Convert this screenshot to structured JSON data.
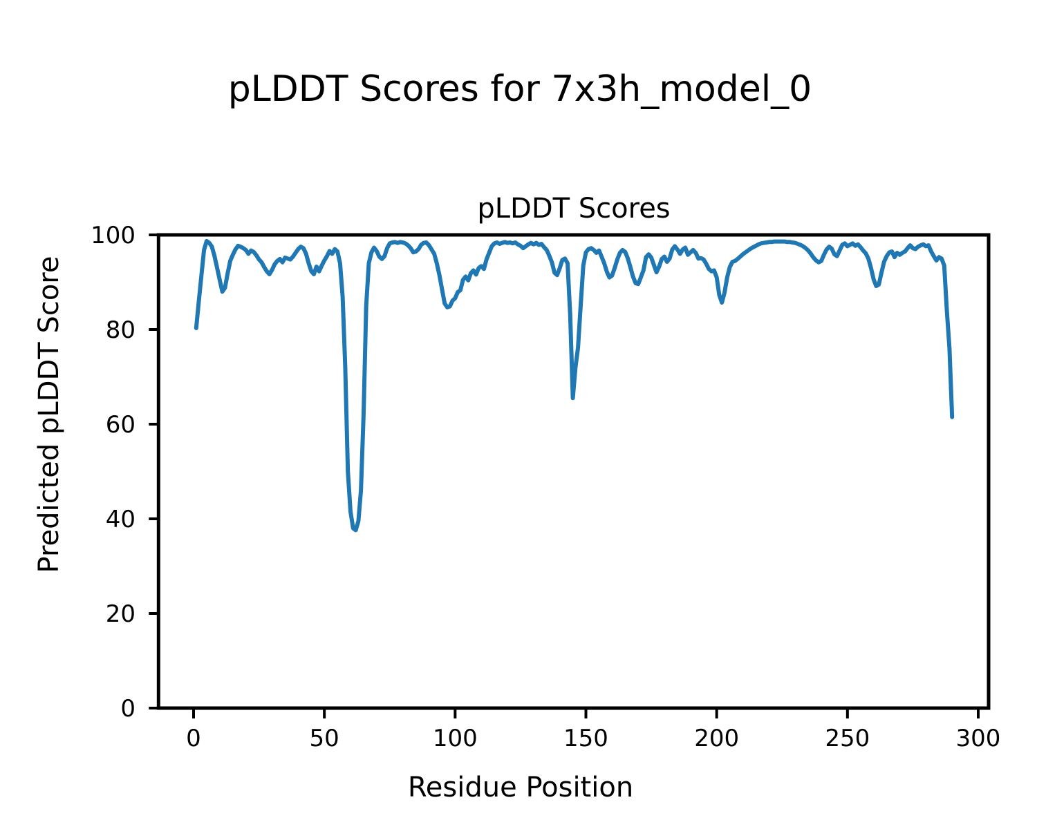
{
  "figure": {
    "suptitle": "pLDDT Scores for 7x3h_model_0",
    "background_color": "#ffffff",
    "text_color": "#000000"
  },
  "chart_data": {
    "type": "line",
    "title": "pLDDT Scores",
    "xlabel": "Residue Position",
    "ylabel": "Predicted pLDDT Score",
    "xlim": [
      -13.4,
      304
    ],
    "ylim": [
      0,
      100
    ],
    "xticks": [
      0,
      50,
      100,
      150,
      200,
      250,
      300
    ],
    "yticks": [
      0,
      20,
      40,
      60,
      80,
      100
    ],
    "grid": false,
    "line_color": "#1f77b4",
    "axis_color": "#000000",
    "series": [
      {
        "name": "pLDDT",
        "x_start": 1,
        "x_step": 1,
        "values": [
          80.3,
          86,
          91.5,
          96.8,
          98.7,
          98.3,
          97.5,
          95.5,
          93,
          90.5,
          88,
          88.8,
          91.8,
          94.5,
          95.8,
          96.9,
          97.7,
          97.5,
          97.2,
          96.8,
          96,
          96.7,
          96.4,
          95.7,
          94.8,
          94.2,
          93.2,
          92.3,
          91.7,
          92.6,
          93.8,
          94.5,
          94.9,
          94.2,
          95.2,
          95,
          94.8,
          95.4,
          96.2,
          97,
          97.5,
          97.2,
          96,
          94,
          92.3,
          91.7,
          93.3,
          92.3,
          93.5,
          94.6,
          95.5,
          96.6,
          96,
          97,
          96.5,
          94,
          87,
          72,
          50,
          41.5,
          38,
          37.6,
          39.5,
          46,
          62,
          85,
          94,
          96.3,
          97.3,
          96.6,
          95.4,
          94.9,
          95.5,
          97.2,
          98.2,
          98.4,
          98.5,
          98.3,
          98.5,
          98.4,
          98.2,
          97.8,
          97.2,
          96.3,
          96.5,
          97,
          97.9,
          98.3,
          98.4,
          97.8,
          96.9,
          96,
          94,
          91.5,
          88.5,
          85.5,
          84.7,
          84.9,
          86.1,
          86.6,
          87.9,
          88.3,
          90.5,
          91.2,
          90.4,
          91.9,
          92.5,
          91.6,
          93,
          93.4,
          92.8,
          94.8,
          96.2,
          97.6,
          98.2,
          98.4,
          98.1,
          98.3,
          98.5,
          98.3,
          98.4,
          98.2,
          98.4,
          98,
          97.7,
          97.2,
          97.6,
          98,
          98.3,
          98,
          98.3,
          97.9,
          98.1,
          97.4,
          96.8,
          95.6,
          94.2,
          92,
          91.5,
          93,
          94.7,
          95,
          94,
          83,
          65.5,
          72,
          76.2,
          85,
          93.5,
          96.3,
          97,
          97.2,
          96.8,
          96.2,
          96.7,
          95.4,
          94,
          92.2,
          91,
          91.4,
          93,
          94.8,
          96.2,
          96.8,
          96.4,
          95.1,
          93.2,
          91.2,
          89.8,
          89.6,
          91,
          92.5,
          95.3,
          95.9,
          95.2,
          93.6,
          92.1,
          93.3,
          94.9,
          95.4,
          94.3,
          95,
          96.9,
          97.6,
          96.9,
          96,
          96.9,
          97.3,
          95.8,
          96.3,
          96.8,
          96.2,
          95,
          95.1,
          94.8,
          93.9,
          92.8,
          92.3,
          92.5,
          91,
          87.3,
          85.7,
          87.8,
          91,
          93.2,
          94.3,
          94.5,
          94.9,
          95.4,
          95.9,
          96.3,
          96.7,
          97.1,
          97.4,
          97.7,
          98,
          98.2,
          98.3,
          98.4,
          98.5,
          98.5,
          98.6,
          98.6,
          98.6,
          98.6,
          98.6,
          98.5,
          98.5,
          98.4,
          98.3,
          98.1,
          97.9,
          97.6,
          97.2,
          96.7,
          96,
          95.2,
          94.6,
          94.2,
          94.5,
          95.8,
          96.9,
          97.5,
          97.1,
          95.9,
          95.5,
          96.7,
          97.9,
          98.2,
          97.6,
          97.9,
          98.2,
          97.7,
          98,
          97.4,
          96.7,
          96.1,
          95,
          93,
          90.6,
          89.2,
          89.5,
          92,
          94.3,
          95.5,
          96.3,
          96.5,
          95.3,
          96.2,
          95.8,
          96.2,
          96.5,
          97.2,
          97.8,
          97.2,
          97,
          97.5,
          97.8,
          98,
          97.6,
          97.8,
          96.5,
          95.5,
          94.6,
          95.3,
          95,
          93.5,
          84,
          76,
          61.5
        ]
      }
    ]
  }
}
